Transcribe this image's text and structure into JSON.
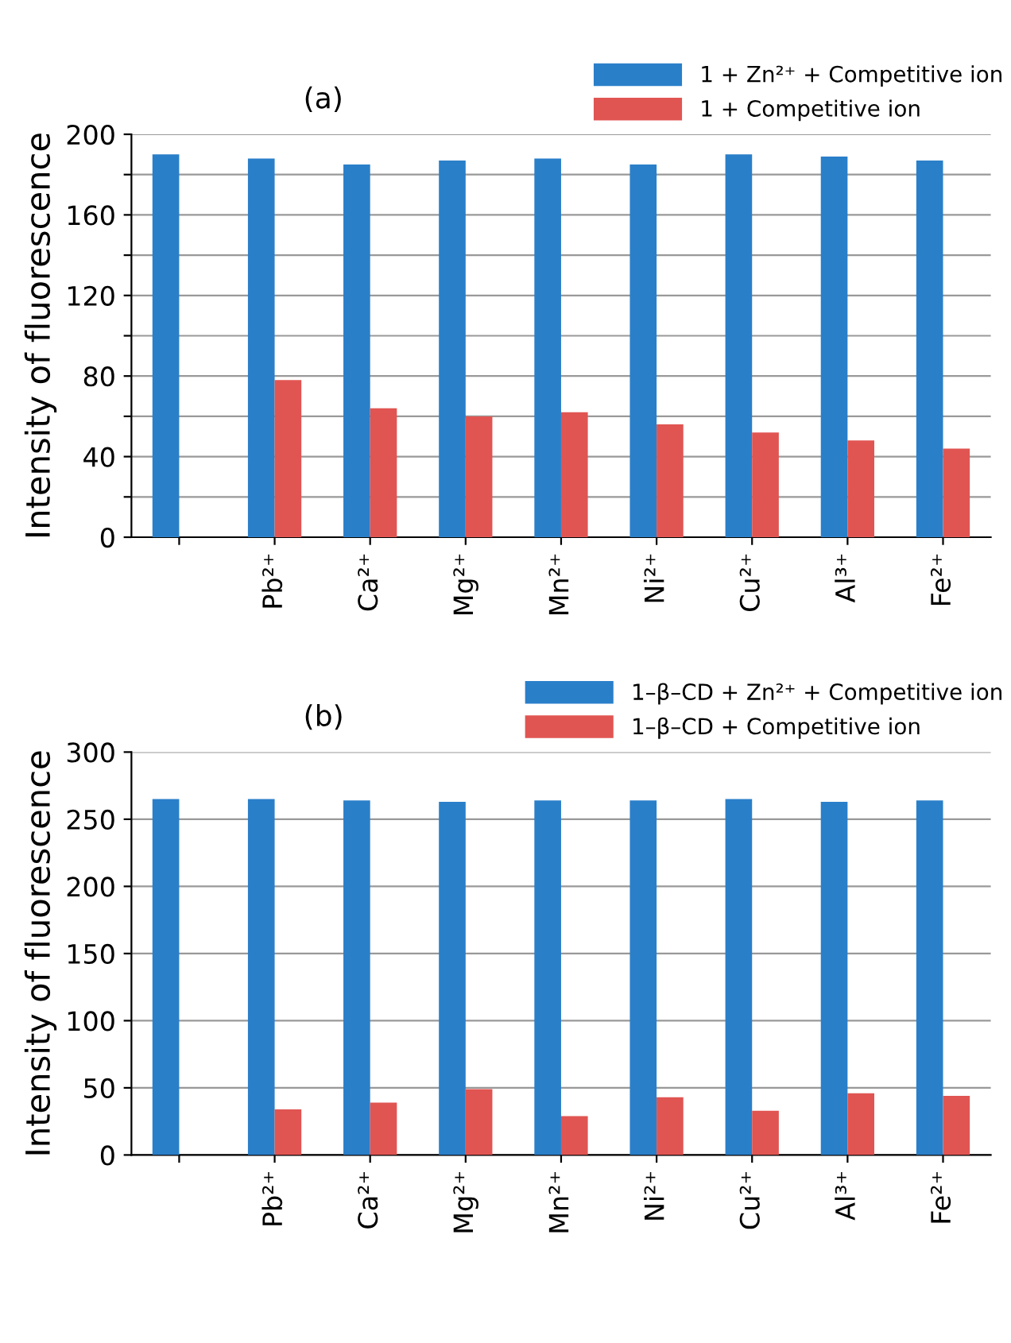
{
  "chart_data": [
    {
      "type": "bar",
      "annotations": [
        "(a)"
      ],
      "ylabel": "Intensity of fluorescence",
      "categories": [
        null,
        "Pb²⁺",
        "Ca²⁺",
        "Mg²⁺",
        "Mn²⁺",
        "Ni²⁺",
        "Cu²⁺",
        "Al³⁺",
        "Fe²⁺"
      ],
      "series": [
        {
          "name": "1 + Zn²⁺ + Competitive ion",
          "color": "#2a7fc9",
          "values": [
            190,
            188,
            185,
            187,
            188,
            185,
            190,
            189,
            187
          ]
        },
        {
          "name": "1 + Competitive ion",
          "color": "#e05552",
          "values": [
            null,
            78,
            64,
            60,
            62,
            56,
            52,
            48,
            44
          ]
        }
      ],
      "ylim": [
        0,
        200
      ],
      "yticks": [
        0,
        {
          "value": 20,
          "label": null
        },
        40,
        {
          "value": 60,
          "label": null
        },
        80,
        {
          "value": 100,
          "label": null
        },
        120,
        {
          "value": 140,
          "label": null
        },
        160,
        {
          "value": 180,
          "label": null
        },
        200
      ],
      "grid": "y",
      "legend": "top right"
    },
    {
      "type": "bar",
      "annotations": [
        "(b)"
      ],
      "ylabel": "Intensity of fluorescence",
      "categories": [
        null,
        "Pb²⁺",
        "Ca²⁺",
        "Mg²⁺",
        "Mn²⁺",
        "Ni²⁺",
        "Cu²⁺",
        "Al³⁺",
        "Fe²⁺"
      ],
      "series": [
        {
          "name": "1–β–CD + Zn²⁺ + Competitive ion",
          "color": "#2a7fc9",
          "values": [
            265,
            265,
            264,
            263,
            264,
            264,
            265,
            263,
            264
          ]
        },
        {
          "name": "1–β–CD + Competitive ion",
          "color": "#e05552",
          "values": [
            null,
            34,
            39,
            49,
            29,
            43,
            33,
            46,
            44
          ]
        }
      ],
      "ylim": [
        0,
        300
      ],
      "yticks": [
        0,
        50,
        100,
        150,
        200,
        250,
        300
      ],
      "grid": "y",
      "legend": "top right"
    }
  ]
}
